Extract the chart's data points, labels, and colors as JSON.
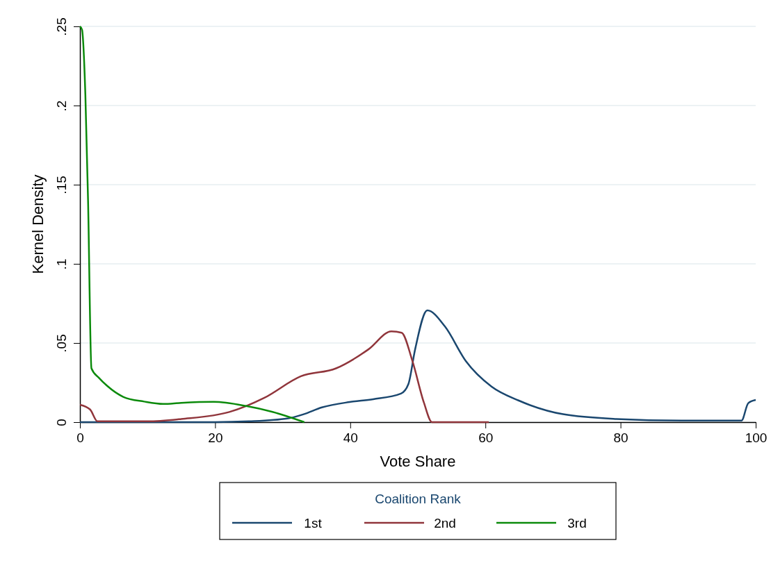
{
  "chart_data": {
    "type": "line",
    "xlabel": "Vote Share",
    "ylabel": "Kernel Density",
    "legend_title": "Coalition Rank",
    "legend": "bottom",
    "grid": "y",
    "line_style": "solid",
    "marker": "none",
    "xlim": [
      0,
      100
    ],
    "xticks": [
      0,
      20,
      40,
      60,
      80,
      100
    ],
    "ylim": [
      0,
      0.25
    ],
    "yticks": [
      {
        "value": 0,
        "label": "0"
      },
      {
        "value": 0.05,
        "label": ".05"
      },
      {
        "value": 0.1,
        "label": ".1"
      },
      {
        "value": 0.15,
        "label": ".15"
      },
      {
        "value": 0.2,
        "label": ".2"
      },
      {
        "value": 0.25,
        "label": ".25"
      }
    ],
    "series": [
      {
        "name": "1st",
        "color": "#1a476f",
        "x": [
          0,
          10,
          20,
          25,
          30.7,
          33.1,
          35.8,
          39.9,
          43.4,
          47.5,
          48.6,
          49.6,
          51.4,
          54,
          57.1,
          60.9,
          64.9,
          71.5,
          79.4,
          89,
          97.9,
          98.9,
          100
        ],
        "values": [
          0,
          0,
          0,
          0.0005,
          0.0023,
          0.005,
          0.0093,
          0.0127,
          0.0145,
          0.018,
          0.024,
          0.046,
          0.0706,
          0.0605,
          0.0386,
          0.0225,
          0.0137,
          0.005,
          0.002,
          0.001,
          0.001,
          0.012,
          0.014
        ]
      },
      {
        "name": "2nd",
        "color": "#90353b",
        "x": [
          0,
          1.5,
          2.6,
          10,
          15,
          22.1,
          27.3,
          32.7,
          37.9,
          42.7,
          46.1,
          47.6,
          49.2,
          50.9,
          52.1,
          60.5
        ],
        "values": [
          0.011,
          0.008,
          0.0005,
          0.0005,
          0.002,
          0.0064,
          0.0154,
          0.029,
          0.034,
          0.046,
          0.0574,
          0.0565,
          0.0386,
          0.0123,
          0,
          0
        ]
      },
      {
        "name": "3rd",
        "color": "#0b8a0b",
        "x": [
          0,
          0.3,
          0.8,
          1.2,
          1.7,
          2.8,
          4,
          6.4,
          9.5,
          12.3,
          15,
          19.8,
          24.6,
          28.5,
          33.2
        ],
        "values": [
          0.25,
          0.248,
          0.207,
          0.14,
          0.034,
          0.028,
          0.023,
          0.016,
          0.013,
          0.0115,
          0.0122,
          0.0128,
          0.0102,
          0.0065,
          0
        ]
      }
    ]
  }
}
